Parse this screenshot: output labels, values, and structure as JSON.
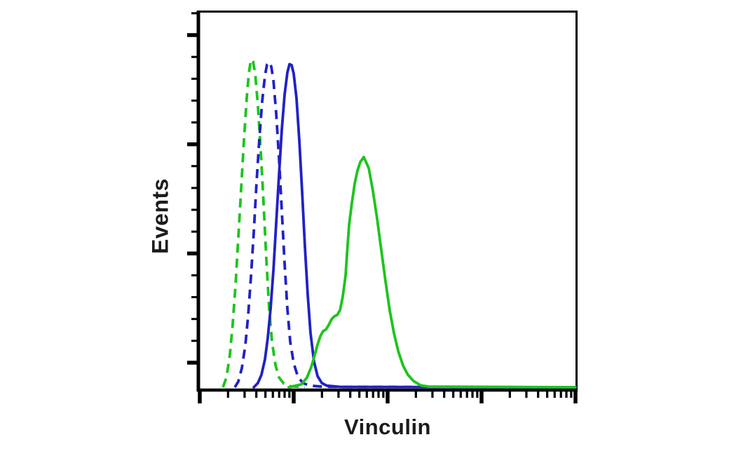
{
  "figure": {
    "background_color": "#ffffff",
    "axis_color": "#000000",
    "label_color": "#1c1c1c"
  },
  "chart_data": {
    "type": "line",
    "subtype": "flow-cytometry-histogram",
    "title": "",
    "xlabel": "Vinculin",
    "ylabel": "Events",
    "grid": false,
    "legend": null,
    "axes": {
      "x": {
        "scale": "log",
        "decades": 4,
        "tick_labels": [],
        "minor_multiples": [
          2,
          3,
          4,
          5,
          6,
          7,
          8,
          9
        ],
        "range_note": "unlabeled relative fluorescence intensity, 10^0 to 10^4"
      },
      "y": {
        "scale": "linear",
        "tick_labels": [],
        "major_tick_count": 4,
        "minors_per_major": 5,
        "range_note": "unlabeled event counts, 0 to max"
      }
    },
    "series": [
      {
        "name": "green-dashed-histogram",
        "color": "#1dc41d",
        "line_style": "dashed",
        "peak_x_decade": 0.55,
        "peak_height_fraction": 1.0,
        "points": [
          [
            0.246,
            0.0
          ],
          [
            0.284,
            0.03
          ],
          [
            0.321,
            0.1
          ],
          [
            0.351,
            0.192
          ],
          [
            0.381,
            0.314
          ],
          [
            0.41,
            0.453
          ],
          [
            0.44,
            0.603
          ],
          [
            0.47,
            0.752
          ],
          [
            0.5,
            0.88
          ],
          [
            0.522,
            0.955
          ],
          [
            0.545,
            0.998
          ],
          [
            0.567,
            0.992
          ],
          [
            0.59,
            0.955
          ],
          [
            0.619,
            0.859
          ],
          [
            0.649,
            0.72
          ],
          [
            0.679,
            0.56
          ],
          [
            0.709,
            0.389
          ],
          [
            0.739,
            0.239
          ],
          [
            0.769,
            0.139
          ],
          [
            0.806,
            0.068
          ],
          [
            0.843,
            0.03
          ],
          [
            0.896,
            0.011
          ],
          [
            0.97,
            0.003
          ],
          [
            1.08,
            0.001
          ],
          [
            1.12,
            0.0
          ]
        ]
      },
      {
        "name": "blue-dashed-histogram",
        "color": "#2121c6",
        "line_style": "dashed",
        "peak_x_decade": 0.74,
        "peak_height_fraction": 0.99,
        "points": [
          [
            0.373,
            0.0
          ],
          [
            0.41,
            0.017
          ],
          [
            0.448,
            0.058
          ],
          [
            0.485,
            0.128
          ],
          [
            0.515,
            0.218
          ],
          [
            0.545,
            0.336
          ],
          [
            0.575,
            0.474
          ],
          [
            0.604,
            0.62
          ],
          [
            0.634,
            0.757
          ],
          [
            0.664,
            0.87
          ],
          [
            0.694,
            0.949
          ],
          [
            0.716,
            0.983
          ],
          [
            0.739,
            0.99
          ],
          [
            0.761,
            0.977
          ],
          [
            0.784,
            0.934
          ],
          [
            0.813,
            0.838
          ],
          [
            0.843,
            0.699
          ],
          [
            0.873,
            0.538
          ],
          [
            0.903,
            0.378
          ],
          [
            0.933,
            0.239
          ],
          [
            0.963,
            0.139
          ],
          [
            1.0,
            0.073
          ],
          [
            1.045,
            0.032
          ],
          [
            1.097,
            0.013
          ],
          [
            1.172,
            0.005
          ],
          [
            1.306,
            0.002
          ],
          [
            1.6,
            0.001
          ],
          [
            4.0,
            0.0
          ]
        ]
      },
      {
        "name": "blue-solid-histogram",
        "color": "#2121c6",
        "line_style": "solid",
        "peak_x_decade": 0.97,
        "peak_height_fraction": 0.985,
        "points": [
          [
            0.575,
            0.0
          ],
          [
            0.619,
            0.013
          ],
          [
            0.657,
            0.038
          ],
          [
            0.694,
            0.085
          ],
          [
            0.724,
            0.15
          ],
          [
            0.754,
            0.239
          ],
          [
            0.784,
            0.357
          ],
          [
            0.813,
            0.496
          ],
          [
            0.843,
            0.645
          ],
          [
            0.873,
            0.784
          ],
          [
            0.903,
            0.891
          ],
          [
            0.933,
            0.959
          ],
          [
            0.955,
            0.984
          ],
          [
            0.978,
            0.981
          ],
          [
            1.0,
            0.955
          ],
          [
            1.03,
            0.88
          ],
          [
            1.06,
            0.752
          ],
          [
            1.09,
            0.592
          ],
          [
            1.119,
            0.432
          ],
          [
            1.149,
            0.282
          ],
          [
            1.179,
            0.165
          ],
          [
            1.216,
            0.079
          ],
          [
            1.254,
            0.034
          ],
          [
            1.299,
            0.013
          ],
          [
            1.351,
            0.005
          ],
          [
            1.5,
            0.001
          ],
          [
            4.0,
            0.0
          ]
        ]
      },
      {
        "name": "green-solid-histogram",
        "color": "#1dc41d",
        "line_style": "solid",
        "peak_x_decade": 1.75,
        "peak_height_fraction": 0.7,
        "points": [
          [
            0.948,
            0.0
          ],
          [
            1.082,
            0.009
          ],
          [
            1.142,
            0.03
          ],
          [
            1.187,
            0.062
          ],
          [
            1.224,
            0.098
          ],
          [
            1.254,
            0.13
          ],
          [
            1.284,
            0.156
          ],
          [
            1.313,
            0.171
          ],
          [
            1.343,
            0.176
          ],
          [
            1.373,
            0.19
          ],
          [
            1.403,
            0.207
          ],
          [
            1.433,
            0.216
          ],
          [
            1.463,
            0.22
          ],
          [
            1.493,
            0.235
          ],
          [
            1.522,
            0.275
          ],
          [
            1.552,
            0.34
          ],
          [
            1.571,
            0.42
          ],
          [
            1.59,
            0.496
          ],
          [
            1.619,
            0.56
          ],
          [
            1.649,
            0.62
          ],
          [
            1.679,
            0.66
          ],
          [
            1.709,
            0.686
          ],
          [
            1.746,
            0.701
          ],
          [
            1.799,
            0.667
          ],
          [
            1.843,
            0.598
          ],
          [
            1.888,
            0.513
          ],
          [
            1.933,
            0.417
          ],
          [
            1.978,
            0.321
          ],
          [
            2.022,
            0.235
          ],
          [
            2.067,
            0.165
          ],
          [
            2.112,
            0.111
          ],
          [
            2.164,
            0.066
          ],
          [
            2.216,
            0.038
          ],
          [
            2.276,
            0.019
          ],
          [
            2.351,
            0.006
          ],
          [
            2.44,
            0.002
          ],
          [
            4.0,
            0.0
          ]
        ]
      }
    ]
  }
}
